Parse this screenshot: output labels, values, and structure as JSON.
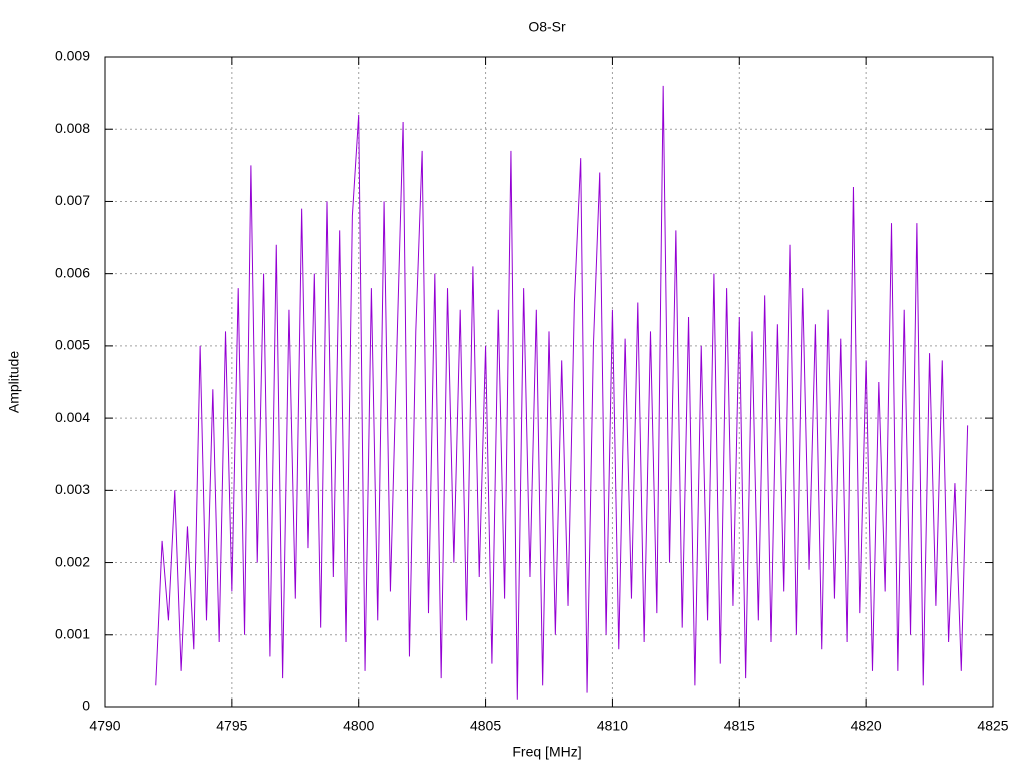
{
  "chart_data": {
    "type": "line",
    "title": "O8-Sr",
    "xlabel": "Freq [MHz]",
    "ylabel": "Amplitude",
    "color": "#9400d3",
    "grid": true,
    "xlim": [
      4790,
      4825
    ],
    "xticks": [
      4790,
      4795,
      4800,
      4805,
      4810,
      4815,
      4820,
      4825
    ],
    "ylim": [
      0,
      0.009
    ],
    "yticks": [
      0,
      0.001,
      0.002,
      0.003,
      0.004,
      0.005,
      0.006,
      0.007,
      0.008,
      0.009
    ],
    "x": [
      4792,
      4792.25,
      4792.5,
      4792.75,
      4793,
      4793.25,
      4793.5,
      4793.75,
      4794,
      4794.25,
      4794.5,
      4794.75,
      4795,
      4795.25,
      4795.5,
      4795.75,
      4796,
      4796.25,
      4796.5,
      4796.75,
      4797,
      4797.25,
      4797.5,
      4797.75,
      4798,
      4798.25,
      4798.5,
      4798.75,
      4799,
      4799.25,
      4799.5,
      4799.75,
      4800,
      4800.25,
      4800.5,
      4800.75,
      4801,
      4801.25,
      4801.5,
      4801.75,
      4802,
      4802.25,
      4802.5,
      4802.75,
      4803,
      4803.25,
      4803.5,
      4803.75,
      4804,
      4804.25,
      4804.5,
      4804.75,
      4805,
      4805.25,
      4805.5,
      4805.75,
      4806,
      4806.25,
      4806.5,
      4806.75,
      4807,
      4807.25,
      4807.5,
      4807.75,
      4808,
      4808.25,
      4808.5,
      4808.75,
      4809,
      4809.25,
      4809.5,
      4809.75,
      4810,
      4810.25,
      4810.5,
      4810.75,
      4811,
      4811.25,
      4811.5,
      4811.75,
      4812,
      4812.25,
      4812.5,
      4812.75,
      4813,
      4813.25,
      4813.5,
      4813.75,
      4814,
      4814.25,
      4814.5,
      4814.75,
      4815,
      4815.25,
      4815.5,
      4815.75,
      4816,
      4816.25,
      4816.5,
      4816.75,
      4817,
      4817.25,
      4817.5,
      4817.75,
      4818,
      4818.25,
      4818.5,
      4818.75,
      4819,
      4819.25,
      4819.5,
      4819.75,
      4820,
      4820.25,
      4820.5,
      4820.75,
      4821,
      4821.25,
      4821.5,
      4821.75,
      4822,
      4822.25,
      4822.5,
      4822.75,
      4823,
      4823.25,
      4823.5,
      4823.75,
      4824
    ],
    "values": [
      0.0003,
      0.0023,
      0.0012,
      0.003,
      0.0005,
      0.0025,
      0.0008,
      0.005,
      0.0012,
      0.0044,
      0.0009,
      0.0052,
      0.0016,
      0.0058,
      0.001,
      0.0075,
      0.002,
      0.006,
      0.0007,
      0.0064,
      0.0004,
      0.0055,
      0.0015,
      0.0069,
      0.0022,
      0.006,
      0.0011,
      0.007,
      0.0018,
      0.0066,
      0.0009,
      0.0068,
      0.0082,
      0.0005,
      0.0058,
      0.0012,
      0.007,
      0.0016,
      0.0049,
      0.0081,
      0.0007,
      0.0052,
      0.0077,
      0.0013,
      0.006,
      0.0004,
      0.0058,
      0.002,
      0.0055,
      0.0012,
      0.0061,
      0.0018,
      0.005,
      0.0006,
      0.0055,
      0.0015,
      0.0077,
      0.0001,
      0.0058,
      0.0018,
      0.0055,
      0.0003,
      0.0052,
      0.001,
      0.0048,
      0.0014,
      0.0056,
      0.0076,
      0.0002,
      0.005,
      0.0074,
      0.001,
      0.0055,
      0.0008,
      0.0051,
      0.0015,
      0.0056,
      0.0009,
      0.0052,
      0.0013,
      0.0086,
      0.002,
      0.0066,
      0.0011,
      0.0054,
      0.0003,
      0.005,
      0.0012,
      0.006,
      0.0006,
      0.0058,
      0.0014,
      0.0054,
      0.0004,
      0.0052,
      0.0012,
      0.0057,
      0.0009,
      0.0053,
      0.0016,
      0.0064,
      0.001,
      0.0058,
      0.0019,
      0.0053,
      0.0008,
      0.0055,
      0.0015,
      0.0051,
      0.0009,
      0.0072,
      0.0013,
      0.0048,
      0.0005,
      0.0045,
      0.0016,
      0.0067,
      0.0005,
      0.0055,
      0.001,
      0.0067,
      0.0003,
      0.0049,
      0.0014,
      0.0048,
      0.0009,
      0.0031,
      0.0005,
      0.0039
    ]
  }
}
